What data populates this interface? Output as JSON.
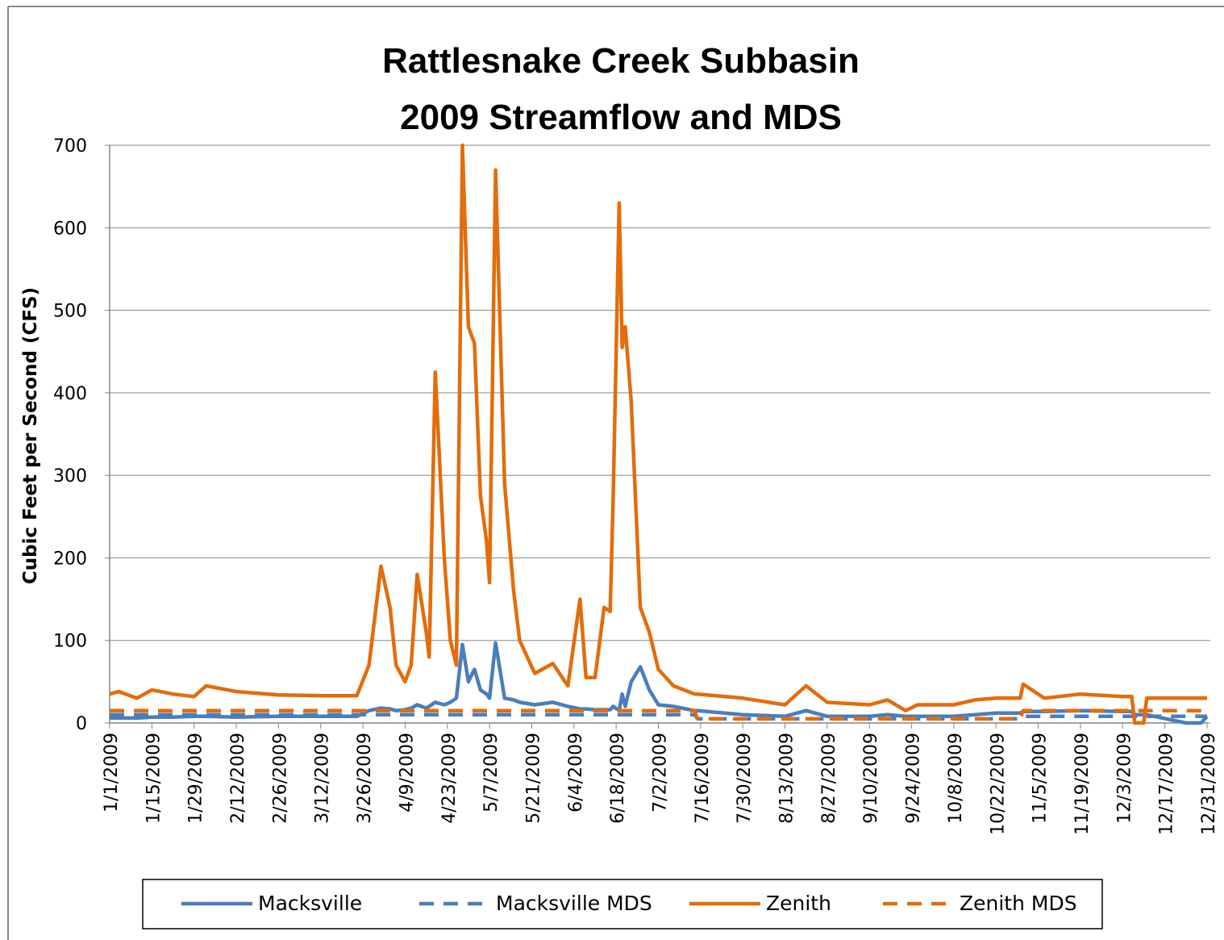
{
  "chart_data": {
    "type": "line",
    "title": [
      "Rattlesnake Creek Subbasin",
      "2009 Streamflow and MDS"
    ],
    "y_label": "Cubic Feet per Second (CFS)",
    "x": [
      "1/1/2009",
      "1/4/2009",
      "1/10/2009",
      "1/15/2009",
      "1/22/2009",
      "1/29/2009",
      "2/2/2009",
      "2/12/2009",
      "2/26/2009",
      "3/12/2009",
      "3/24/2009",
      "3/28/2009",
      "4/1/2009",
      "4/4/2009",
      "4/6/2009",
      "4/9/2009",
      "4/11/2009",
      "4/13/2009",
      "4/16/2009",
      "4/17/2009",
      "4/19/2009",
      "4/22/2009",
      "4/24/2009",
      "4/26/2009",
      "4/28/2009",
      "4/30/2009",
      "5/2/2009",
      "5/4/2009",
      "5/6/2009",
      "5/7/2009",
      "5/9/2009",
      "5/12/2009",
      "5/15/2009",
      "5/17/2009",
      "5/22/2009",
      "5/28/2009",
      "6/2/2009",
      "6/6/2009",
      "6/8/2009",
      "6/11/2009",
      "6/14/2009",
      "6/16/2009",
      "6/17/2009",
      "6/19/2009",
      "6/20/2009",
      "6/21/2009",
      "6/23/2009",
      "6/26/2009",
      "6/29/2009",
      "7/2/2009",
      "7/7/2009",
      "7/14/2009",
      "7/15/2009",
      "7/30/2009",
      "8/13/2009",
      "8/20/2009",
      "8/27/2009",
      "9/10/2009",
      "9/16/2009",
      "9/22/2009",
      "9/26/2009",
      "10/8/2009",
      "10/15/2009",
      "10/22/2009",
      "10/30/2009",
      "10/31/2009",
      "11/7/2009",
      "11/19/2009",
      "12/3/2009",
      "12/6/2009",
      "12/7/2009",
      "12/10/2009",
      "12/11/2009",
      "12/24/2009",
      "12/29/2009",
      "12/31/2009"
    ],
    "xlim": [
      "1/1/2009",
      "12/31/2009"
    ],
    "xticks": [
      "1/1/2009",
      "1/15/2009",
      "1/29/2009",
      "2/12/2009",
      "2/26/2009",
      "3/12/2009",
      "3/26/2009",
      "4/9/2009",
      "4/23/2009",
      "5/7/2009",
      "5/21/2009",
      "6/4/2009",
      "6/18/2009",
      "7/2/2009",
      "7/16/2009",
      "7/30/2009",
      "8/13/2009",
      "8/27/2009",
      "9/10/2009",
      "9/24/2009",
      "10/8/2009",
      "10/22/2009",
      "11/5/2009",
      "11/19/2009",
      "12/3/2009",
      "12/17/2009",
      "12/31/2009"
    ],
    "ylim": [
      0,
      700
    ],
    "yticks": [
      0,
      100,
      200,
      300,
      400,
      500,
      600,
      700
    ],
    "grid": true,
    "legend": "bottom",
    "series": [
      {
        "name": "Macksville",
        "color": "#4a7ebb",
        "dashed": false,
        "values": [
          6,
          6,
          6,
          7,
          7,
          8,
          8,
          7,
          8,
          8,
          8,
          15,
          18,
          17,
          15,
          16,
          18,
          22,
          18,
          20,
          25,
          22,
          25,
          30,
          95,
          50,
          65,
          40,
          35,
          30,
          97,
          30,
          28,
          25,
          22,
          25,
          20,
          17,
          17,
          16,
          16,
          16,
          20,
          15,
          35,
          20,
          50,
          68,
          40,
          22,
          20,
          15,
          15,
          10,
          8,
          15,
          8,
          8,
          10,
          8,
          8,
          8,
          10,
          12,
          12,
          14,
          14,
          15,
          14,
          14,
          10,
          10,
          10,
          0,
          0,
          8
        ]
      },
      {
        "name": "Macksville MDS",
        "color": "#4a7ebb",
        "dashed": true,
        "values": [
          10,
          10,
          10,
          10,
          10,
          10,
          10,
          10,
          10,
          10,
          10,
          10,
          10,
          10,
          10,
          10,
          10,
          10,
          10,
          10,
          10,
          10,
          10,
          10,
          10,
          10,
          10,
          10,
          10,
          10,
          10,
          10,
          10,
          10,
          10,
          10,
          10,
          10,
          10,
          10,
          10,
          10,
          10,
          10,
          10,
          10,
          10,
          10,
          10,
          10,
          10,
          10,
          5,
          5,
          5,
          5,
          5,
          5,
          5,
          5,
          5,
          5,
          5,
          5,
          5,
          8,
          8,
          8,
          8,
          8,
          8,
          8,
          8,
          8,
          8,
          8
        ]
      },
      {
        "name": "Zenith",
        "color": "#e46c0a",
        "dashed": false,
        "values": [
          35,
          38,
          30,
          40,
          35,
          32,
          45,
          38,
          34,
          33,
          33,
          70,
          190,
          140,
          70,
          50,
          70,
          180,
          110,
          80,
          425,
          200,
          100,
          70,
          700,
          480,
          460,
          275,
          220,
          170,
          670,
          290,
          160,
          100,
          60,
          72,
          45,
          150,
          55,
          55,
          140,
          135,
          270,
          630,
          455,
          480,
          390,
          140,
          110,
          65,
          45,
          35,
          35,
          30,
          22,
          45,
          25,
          22,
          28,
          15,
          22,
          22,
          28,
          30,
          30,
          47,
          30,
          35,
          32,
          32,
          0,
          0,
          30,
          30,
          30,
          30
        ]
      },
      {
        "name": "Zenith MDS",
        "color": "#e46c0a",
        "dashed": true,
        "values": [
          15,
          15,
          15,
          15,
          15,
          15,
          15,
          15,
          15,
          15,
          15,
          15,
          15,
          15,
          15,
          15,
          15,
          15,
          15,
          15,
          15,
          15,
          15,
          15,
          15,
          15,
          15,
          15,
          15,
          15,
          15,
          15,
          15,
          15,
          15,
          15,
          15,
          15,
          15,
          15,
          15,
          15,
          15,
          15,
          15,
          15,
          15,
          15,
          15,
          15,
          15,
          15,
          5,
          5,
          5,
          5,
          5,
          5,
          5,
          5,
          5,
          5,
          5,
          5,
          5,
          15,
          15,
          15,
          15,
          15,
          15,
          15,
          15,
          15,
          15,
          15
        ]
      }
    ]
  }
}
